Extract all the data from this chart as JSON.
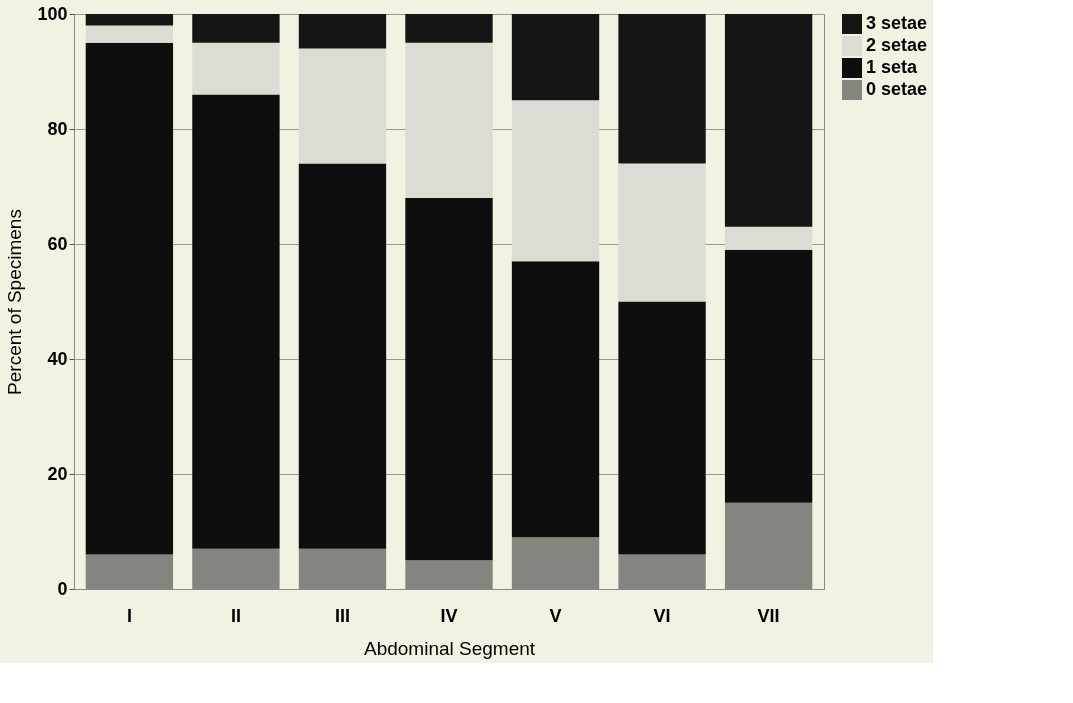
{
  "chart_data": {
    "type": "bar",
    "stacked": true,
    "xlabel": "Abdominal Segment",
    "ylabel": "Percent of Specimens",
    "categories": [
      "I",
      "II",
      "III",
      "IV",
      "V",
      "VI",
      "VII"
    ],
    "series": [
      {
        "name": "0 setae",
        "color": "#858580",
        "values": [
          6,
          7,
          7,
          5,
          9,
          6,
          15
        ]
      },
      {
        "name": "1 seta",
        "color": "#0e0e0e",
        "values": [
          89,
          79,
          67,
          63,
          48,
          44,
          44
        ]
      },
      {
        "name": "2 setae",
        "color": "#dcdcd4",
        "values": [
          3,
          9,
          20,
          27,
          28,
          24,
          4
        ]
      },
      {
        "name": "3 setae",
        "color": "#151515",
        "values": [
          2,
          5,
          6,
          5,
          15,
          26,
          37
        ]
      }
    ],
    "ylim": [
      0,
      100
    ],
    "yticks": [
      0,
      20,
      40,
      60,
      80,
      100
    ],
    "grid": "y",
    "legend": "right"
  }
}
